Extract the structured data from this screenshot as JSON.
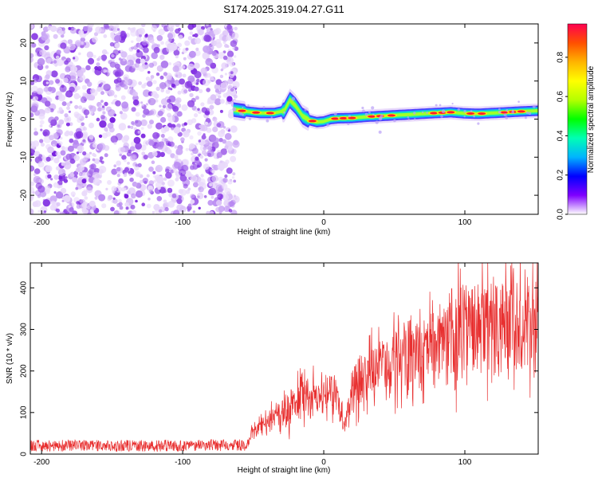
{
  "title": "S174.2025.319.04.27.G11",
  "top_panel": {
    "xlabel": "Height of straight line (km)",
    "ylabel": "Frequency (Hz)",
    "xlim": [
      -208,
      152
    ],
    "ylim": [
      -25,
      25
    ],
    "xticks": [
      -200,
      -100,
      0,
      100
    ],
    "yticks": [
      -20,
      -10,
      0,
      10,
      20
    ],
    "noise_region_end_km": -62
  },
  "colorbar": {
    "label": "Normalized spectral amplitude",
    "range": [
      0.0,
      0.97
    ],
    "ticks": [
      "0.0",
      "0.2",
      "0.4",
      "0.6",
      "0.8"
    ],
    "tick_values": [
      0.0,
      0.2,
      0.4,
      0.6,
      0.8
    ],
    "colors": [
      "#ffffff",
      "#7f00ff",
      "#0000ff",
      "#00b4ff",
      "#00ffb4",
      "#00ff00",
      "#b4ff00",
      "#ffff00",
      "#ffb400",
      "#ff5000",
      "#ff0050"
    ]
  },
  "bottom_panel": {
    "xlabel": "Height of straight line (km)",
    "ylabel": "SNR (10 * v/v)",
    "xlim": [
      -208,
      152
    ],
    "ylim": [
      0,
      460
    ],
    "xticks": [
      -200,
      -100,
      0,
      100
    ],
    "yticks": [
      0,
      100,
      200,
      300,
      400
    ]
  },
  "chart_data": [
    {
      "type": "heatmap",
      "title": "S174.2025.319.04.27.G11",
      "xlabel": "Height of straight line (km)",
      "ylabel": "Frequency (Hz)",
      "xlim": [
        -208,
        152
      ],
      "ylim": [
        -25,
        25
      ],
      "ridge": {
        "x": [
          -64,
          -55,
          -45,
          -35,
          -28,
          -24,
          -20,
          -15,
          -10,
          -5,
          0,
          5,
          10,
          20,
          30,
          40,
          50,
          60,
          70,
          80,
          90,
          100,
          110,
          120,
          130,
          140,
          152
        ],
        "y": [
          2.5,
          2.0,
          1.6,
          1.6,
          2.2,
          5.0,
          3.5,
          0.8,
          -0.3,
          -0.8,
          -0.6,
          0.0,
          0.2,
          0.3,
          0.6,
          0.8,
          1.0,
          1.2,
          1.4,
          1.6,
          1.8,
          1.5,
          1.4,
          1.6,
          1.8,
          2.0,
          2.2
        ]
      },
      "noise_region": [
        -208,
        -62
      ]
    },
    {
      "type": "line",
      "xlabel": "Height of straight line (km)",
      "ylabel": "SNR (10 * v/v)",
      "xlim": [
        -208,
        152
      ],
      "ylim": [
        0,
        460
      ],
      "envelope": {
        "x": [
          -208,
          -100,
          -55,
          -50,
          -45,
          -40,
          -30,
          -20,
          -15,
          -10,
          -5,
          0,
          5,
          10,
          15,
          20,
          30,
          40,
          50,
          60,
          70,
          80,
          90,
          100,
          110,
          120,
          130,
          140,
          152
        ],
        "y": [
          20,
          20,
          22,
          55,
          70,
          85,
          100,
          130,
          160,
          150,
          150,
          140,
          160,
          130,
          70,
          160,
          200,
          215,
          230,
          245,
          260,
          280,
          295,
          300,
          320,
          330,
          345,
          355,
          365
        ]
      },
      "series_color": "#e83030"
    }
  ]
}
